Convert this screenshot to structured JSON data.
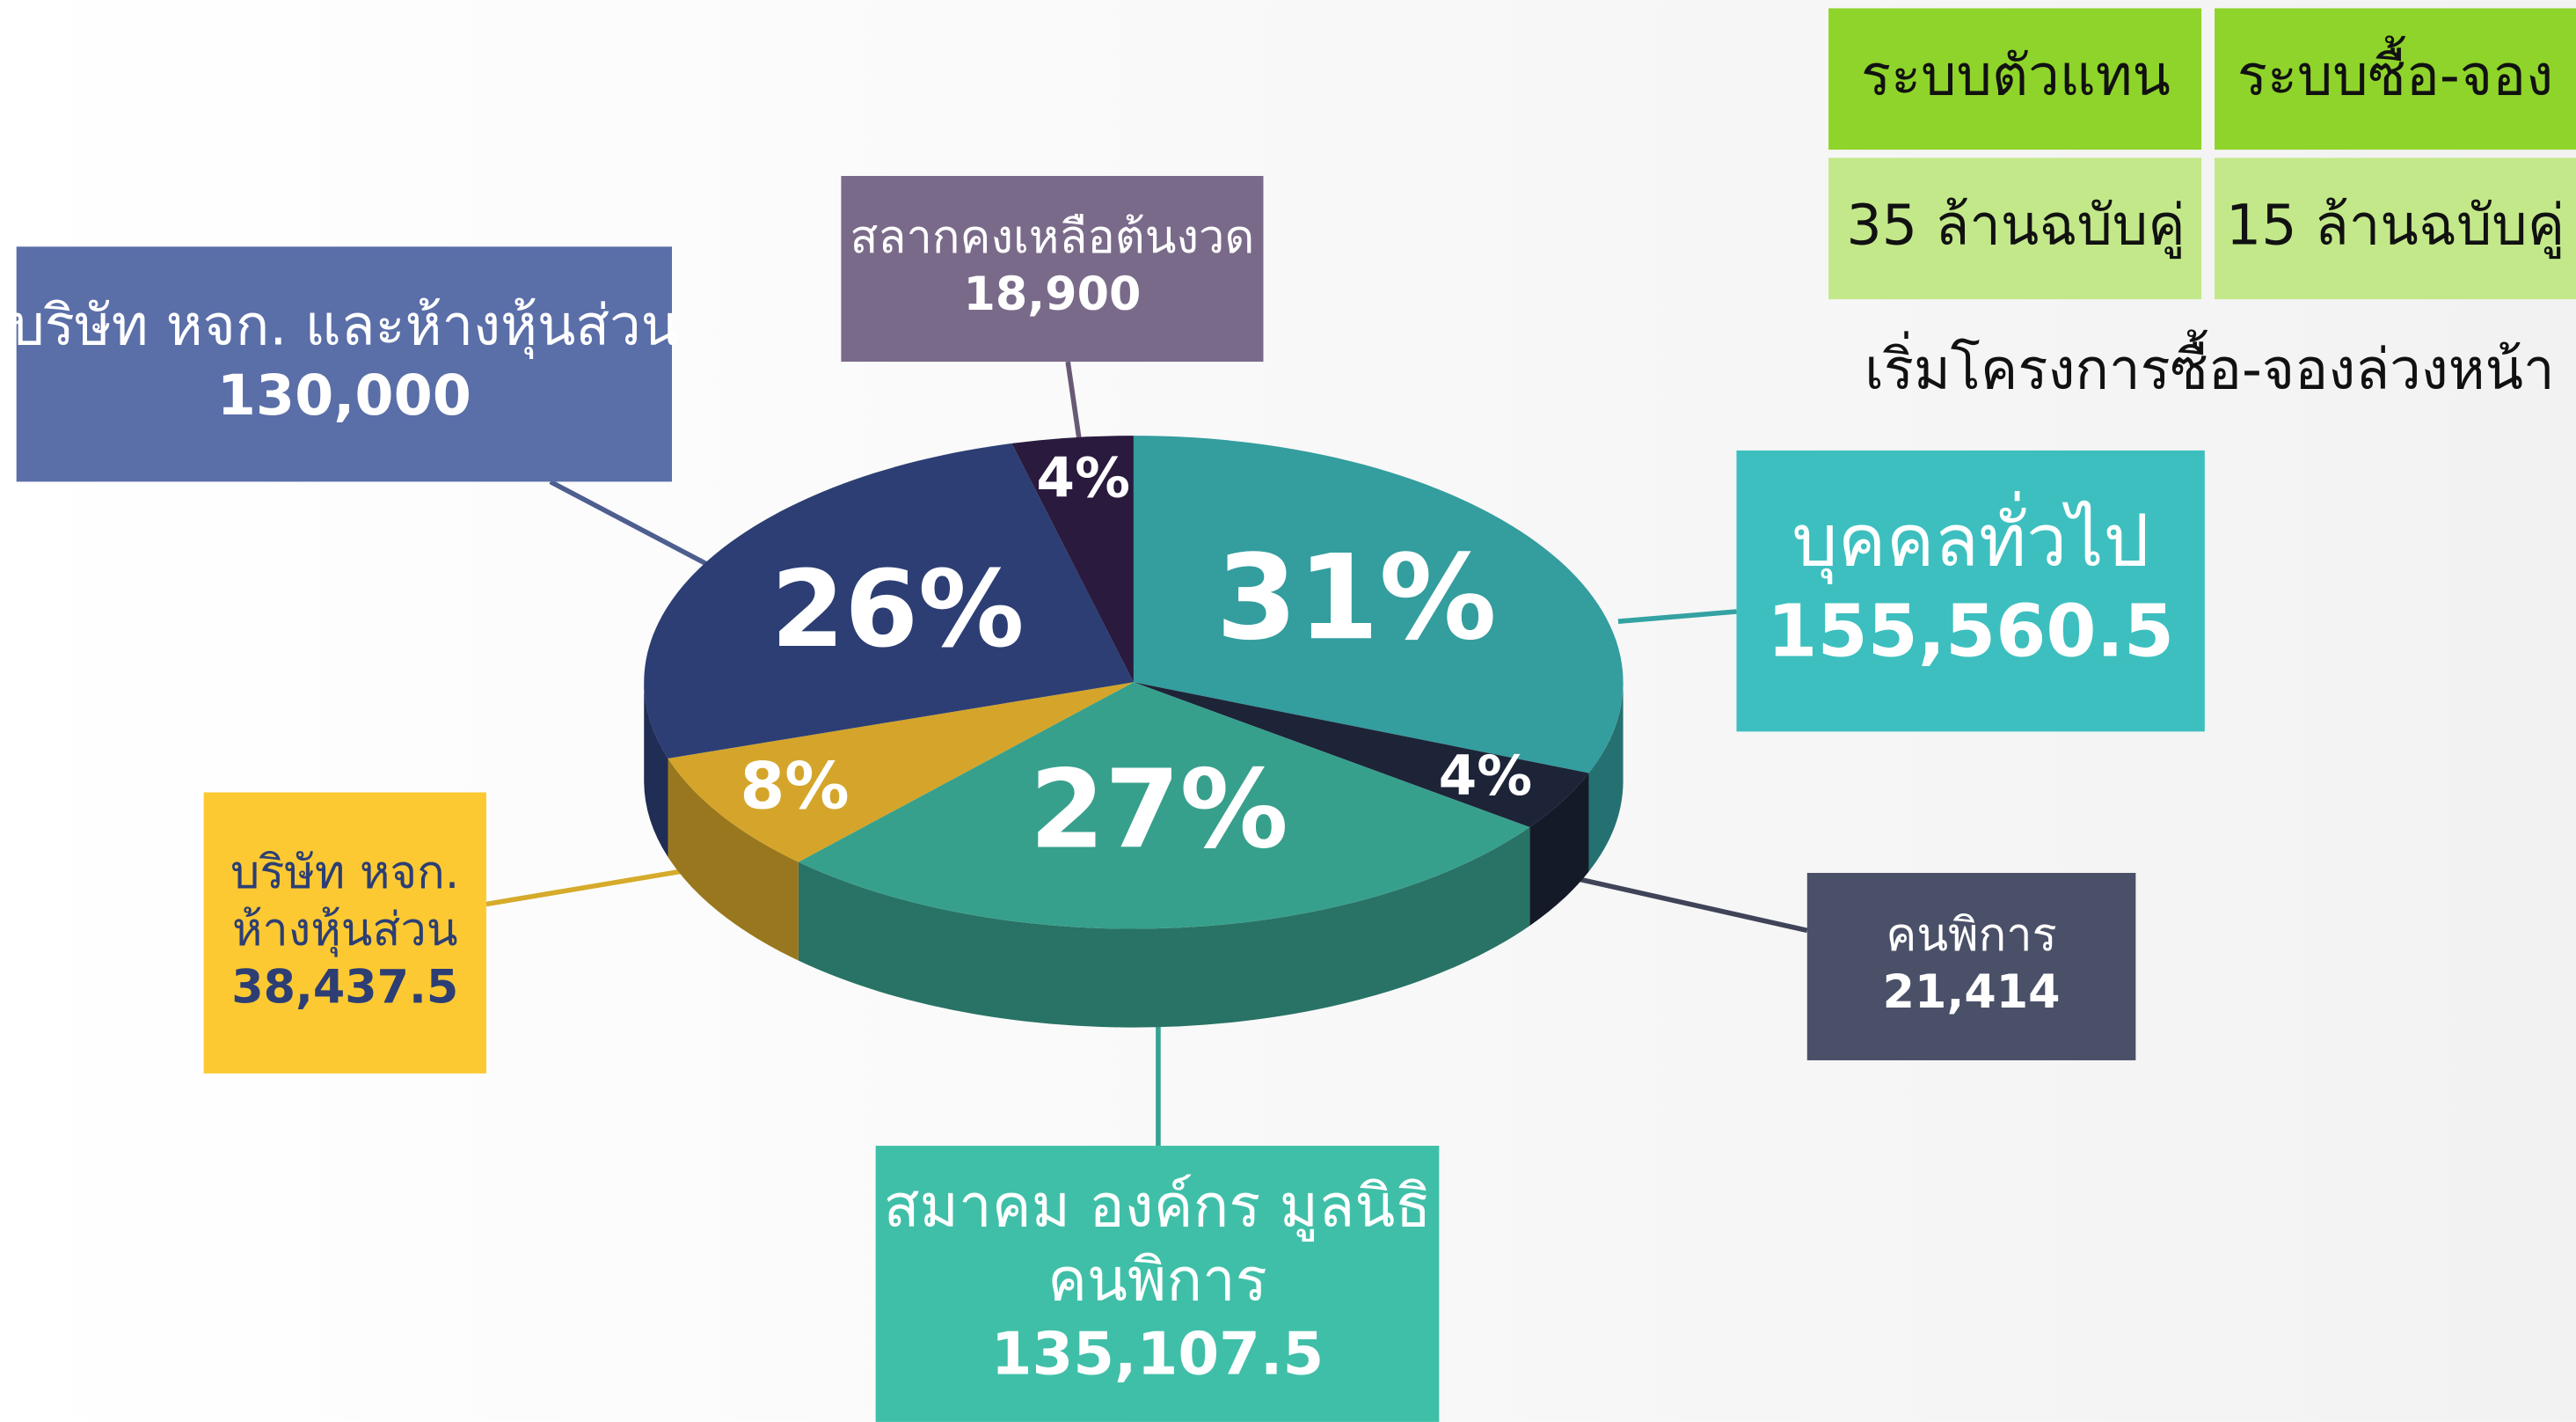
{
  "chart_data": {
    "type": "pie",
    "values": [
      31,
      4,
      27,
      8,
      26,
      4
    ],
    "value_labels": [
      "31%",
      "4%",
      "27%",
      "8%",
      "26%",
      "4%"
    ],
    "colors": [
      "#349d9e",
      "#1d2438",
      "#37a08c",
      "#d4a52a",
      "#2c3e74",
      "#2a1a3e"
    ],
    "labels": [
      [
        "บุคคลทั่วไป"
      ],
      [
        "คนพิการ"
      ],
      [
        "สมาคม องค์กร มูลนิธิ",
        "คนพิการ"
      ],
      [
        "บริษัท หจก.",
        "ห้างหุ้นส่วน"
      ],
      [
        "บริษัท หจก. และห้างหุ้นส่วน"
      ],
      [
        "สลากคงเหลือต้นงวด"
      ]
    ],
    "amounts": [
      {
        "value": 155560.5,
        "label": "155,560.5"
      },
      {
        "value": 21414,
        "label": "21,414"
      },
      {
        "value": 135107.5,
        "label": "135,107.5"
      },
      {
        "value": 38437.5,
        "label": "38,437.5"
      },
      {
        "value": 130000,
        "label": "130,000"
      },
      {
        "value": 18900,
        "label": "18,900"
      }
    ],
    "box_colors": [
      "#3dbfbf",
      "#4a5068",
      "#40bfa8",
      "#fcc932",
      "#5a6ea8",
      "#7a6a8a"
    ]
  },
  "table": {
    "header": [
      "ระบบตัวแทน",
      "ระบบซื้อ-จอง"
    ],
    "rows": [
      [
        "35 ล้านฉบับคู่",
        "15 ล้านฉบับคู่"
      ]
    ],
    "caption": "เริ่มโครงการซื้อ-จองล่วงหน้า"
  }
}
